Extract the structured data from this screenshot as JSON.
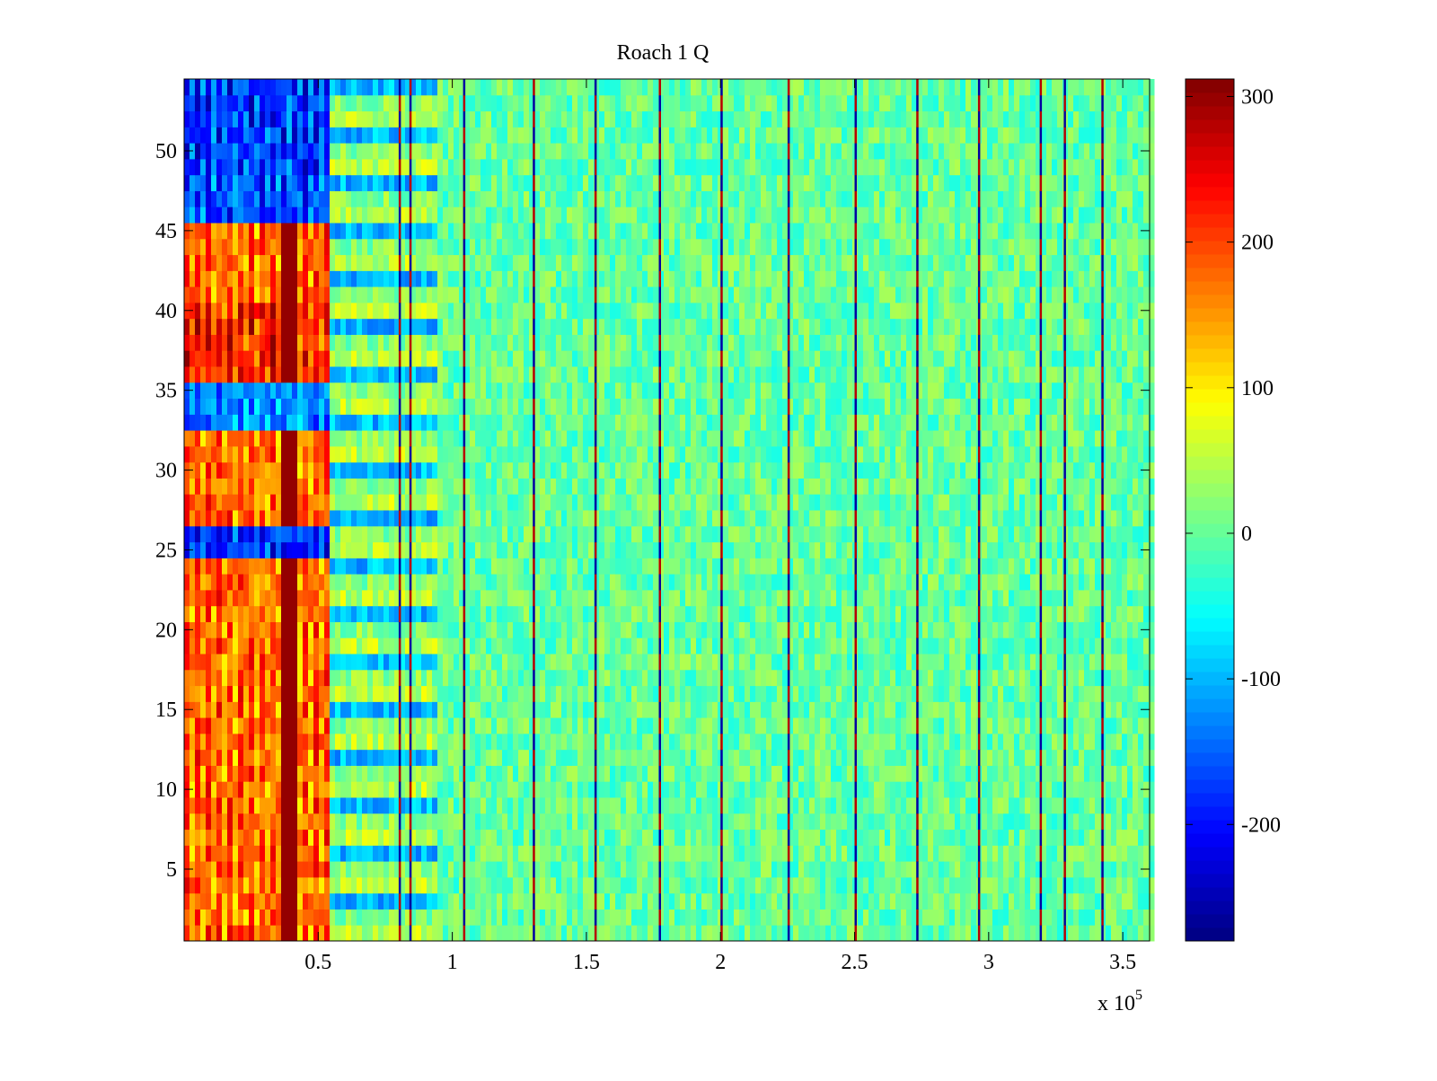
{
  "chart_data": {
    "type": "heatmap",
    "title": "Roach 1 Q",
    "xlabel": "",
    "ylabel": "",
    "x_exponent_label": "x 10",
    "x_exponent_power": "5",
    "xlim": [
      0,
      3.6
    ],
    "ylim": [
      0.5,
      54.5
    ],
    "x_ticks": [
      "0.5",
      "1",
      "1.5",
      "2",
      "2.5",
      "3",
      "3.5"
    ],
    "x_tick_values": [
      0.5,
      1,
      1.5,
      2,
      2.5,
      3,
      3.5
    ],
    "y_ticks": [
      "5",
      "10",
      "15",
      "20",
      "25",
      "30",
      "35",
      "40",
      "45",
      "50"
    ],
    "y_tick_values": [
      5,
      10,
      15,
      20,
      25,
      30,
      35,
      40,
      45,
      50
    ],
    "rows": 54,
    "colorbar": {
      "clim": [
        -280,
        312
      ],
      "ticks": [
        "-200",
        "-100",
        "0",
        "100",
        "200",
        "300"
      ],
      "tick_values": [
        -200,
        -100,
        0,
        100,
        200,
        300
      ],
      "colormap": "jet"
    },
    "regions": [
      {
        "x_range": [
          0,
          0.55
        ],
        "description": "strong alternating stripes",
        "values_rows_1_24": 200,
        "values_rows_25_26": -200,
        "values_rows_27_32": 200,
        "values_rows_33_35": -150,
        "values_rows_36_40": 250,
        "values_rows_41_45": 200,
        "values_rows_46_48": -180,
        "values_rows_49_54": -200
      },
      {
        "x_range": [
          0.55,
          0.95
        ],
        "values_mixed": [
          -100,
          80
        ]
      },
      {
        "x_range": [
          0.95,
          3.6
        ],
        "value_baseline": 0
      }
    ],
    "vertical_spikes_x": [
      0.8,
      0.84,
      1.04,
      1.3,
      1.53,
      1.77,
      2.0,
      2.25,
      2.5,
      2.73,
      2.96,
      3.19,
      3.28,
      3.42
    ],
    "grid": false
  }
}
